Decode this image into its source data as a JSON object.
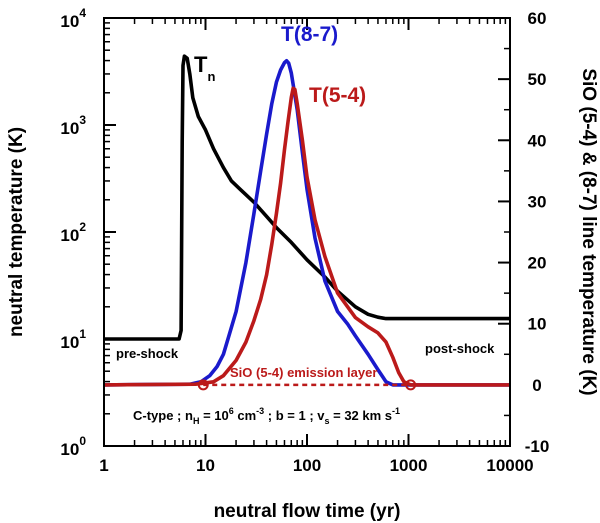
{
  "chart_data": {
    "type": "line",
    "xscale": "log",
    "xlim": [
      1,
      10000
    ],
    "xlabel": "neutral flow time (yr)",
    "x_ticks": [
      "1",
      "10",
      "100",
      "1000",
      "10000"
    ],
    "left_axis": {
      "scale": "log",
      "ylim": [
        1,
        10000
      ],
      "ylabel": "neutral temperature (K)",
      "ticks": [
        {
          "base": "10",
          "exp": "0"
        },
        {
          "base": "10",
          "exp": "1"
        },
        {
          "base": "10",
          "exp": "2"
        },
        {
          "base": "10",
          "exp": "3"
        },
        {
          "base": "10",
          "exp": "4"
        }
      ]
    },
    "right_axis": {
      "scale": "linear",
      "ylim": [
        -10,
        60
      ],
      "ylabel": "SiO (5-4) & (8-7) line temperature (K)",
      "ticks": [
        "-10",
        "0",
        "10",
        "20",
        "30",
        "40",
        "50",
        "60"
      ]
    },
    "series": [
      {
        "name": "Tn",
        "axis": "left",
        "color": "#000000",
        "label_main": "T",
        "label_sub": "n",
        "points": [
          [
            1,
            10
          ],
          [
            5.5,
            10
          ],
          [
            5.75,
            12
          ],
          [
            5.9,
            700
          ],
          [
            6.0,
            3600
          ],
          [
            6.2,
            4400
          ],
          [
            6.6,
            4200
          ],
          [
            7.0,
            3000
          ],
          [
            7.5,
            1800
          ],
          [
            8.5,
            1200
          ],
          [
            10,
            900
          ],
          [
            12,
            600
          ],
          [
            15,
            400
          ],
          [
            18,
            300
          ],
          [
            22,
            250
          ],
          [
            30,
            190
          ],
          [
            40,
            140
          ],
          [
            50,
            110
          ],
          [
            70,
            80
          ],
          [
            100,
            55
          ],
          [
            150,
            38
          ],
          [
            200,
            28
          ],
          [
            300,
            20
          ],
          [
            400,
            17
          ],
          [
            500,
            16
          ],
          [
            600,
            15.5
          ],
          [
            10000,
            15.5
          ]
        ]
      },
      {
        "name": "T(8-7)",
        "axis": "right",
        "color": "#1a1acc",
        "points": [
          [
            1,
            0
          ],
          [
            7,
            0.1
          ],
          [
            9,
            0.5
          ],
          [
            11,
            1.5
          ],
          [
            13,
            3
          ],
          [
            15,
            5
          ],
          [
            17,
            8
          ],
          [
            20,
            12
          ],
          [
            25,
            20
          ],
          [
            30,
            28
          ],
          [
            35,
            35
          ],
          [
            40,
            41
          ],
          [
            45,
            46
          ],
          [
            50,
            49.5
          ],
          [
            55,
            51.5
          ],
          [
            60,
            52.7
          ],
          [
            63,
            53
          ],
          [
            66,
            52.6
          ],
          [
            70,
            51
          ],
          [
            80,
            45
          ],
          [
            90,
            38
          ],
          [
            100,
            32
          ],
          [
            120,
            24
          ],
          [
            150,
            17
          ],
          [
            200,
            12
          ],
          [
            250,
            10
          ],
          [
            300,
            8
          ],
          [
            400,
            5
          ],
          [
            500,
            2.5
          ],
          [
            600,
            0.5
          ],
          [
            700,
            0
          ],
          [
            10000,
            0
          ]
        ]
      },
      {
        "name": "T(5-4)",
        "axis": "right",
        "color": "#bb1a1a",
        "points": [
          [
            1,
            0
          ],
          [
            8,
            0.1
          ],
          [
            12,
            0.5
          ],
          [
            15,
            1.5
          ],
          [
            20,
            4
          ],
          [
            25,
            7
          ],
          [
            30,
            10.5
          ],
          [
            35,
            14
          ],
          [
            40,
            18
          ],
          [
            45,
            23
          ],
          [
            50,
            28
          ],
          [
            55,
            33
          ],
          [
            60,
            38.5
          ],
          [
            65,
            43
          ],
          [
            70,
            47
          ],
          [
            73,
            48.5
          ],
          [
            76,
            48.3
          ],
          [
            80,
            46
          ],
          [
            90,
            40
          ],
          [
            100,
            34
          ],
          [
            120,
            27
          ],
          [
            150,
            21
          ],
          [
            200,
            15
          ],
          [
            300,
            11
          ],
          [
            400,
            9.5
          ],
          [
            500,
            8.5
          ],
          [
            600,
            7
          ],
          [
            700,
            4.5
          ],
          [
            800,
            2
          ],
          [
            900,
            0.5
          ],
          [
            1050,
            0
          ],
          [
            10000,
            0
          ]
        ]
      }
    ],
    "emission_layer": {
      "label": "SiO (5-4) emission layer",
      "x_start": 9.5,
      "x_end": 1050,
      "y": 0,
      "color": "#bb1a1a"
    },
    "annotations": {
      "pre_shock": "pre-shock",
      "post_shock": "post-shock",
      "conditions": {
        "prefix": "C-type ; n",
        "nH_sub": "H",
        "eq": " = 10",
        "density_exp": "6",
        "density_unit": " cm",
        "unit_exp": "-3",
        "b_part": " ; b = 1 ; v",
        "vs_sub": "s",
        "speed": " = 32 km s",
        "speed_exp": "-1"
      }
    }
  }
}
